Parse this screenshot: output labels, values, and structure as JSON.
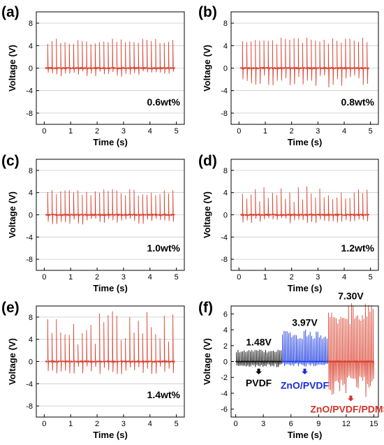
{
  "figure": {
    "panels": [
      {
        "id": "a",
        "letter": "(a)",
        "annotation": "0.6wt%"
      },
      {
        "id": "b",
        "letter": "(b)",
        "annotation": "0.8wt%"
      },
      {
        "id": "c",
        "letter": "(c)",
        "annotation": "1.0wt%"
      },
      {
        "id": "d",
        "letter": "(d)",
        "annotation": "1.2wt%"
      },
      {
        "id": "e",
        "letter": "(e)",
        "annotation": "1.4wt%"
      },
      {
        "id": "f",
        "letter": "(f)",
        "annotation": ""
      }
    ]
  },
  "colors": {
    "trace_red": "#d9422f",
    "trace_black": "#111111",
    "trace_blue": "#1f3fe0",
    "label_red": "#d2342a",
    "label_blue": "#1a2fd6",
    "grid": "#c8c8c8"
  },
  "chart_data": [
    {
      "type": "line",
      "panel": "(a)",
      "xlabel": "Time (s)",
      "ylabel": "Voltage (V)",
      "xlim": [
        -0.3,
        5.3
      ],
      "ylim": [
        -10,
        10
      ],
      "xticks": [
        "0",
        "1",
        "2",
        "3",
        "4",
        "5"
      ],
      "xtick_values": [
        0,
        1,
        2,
        3,
        4,
        5
      ],
      "yticks": [
        "-8",
        "-4",
        "0",
        "4",
        "8"
      ],
      "ytick_values": [
        -8,
        -4,
        0,
        4,
        8
      ],
      "grid": true,
      "annotation": "0.6wt%",
      "series": [
        {
          "color": "#d9422f",
          "t_start": 0.05,
          "t_end": 4.95,
          "pulse_period": 0.1633,
          "v_peak_max": 5.2,
          "v_peak_min": 4.2,
          "v_neg_min": -1.5,
          "noise": 0.15
        }
      ]
    },
    {
      "type": "line",
      "panel": "(b)",
      "xlabel": "Time (s)",
      "ylabel": "Voltage (V)",
      "xlim": [
        -0.3,
        5.3
      ],
      "ylim": [
        -10,
        10
      ],
      "xticks": [
        "0",
        "1",
        "2",
        "3",
        "4",
        "5"
      ],
      "xtick_values": [
        0,
        1,
        2,
        3,
        4,
        5
      ],
      "yticks": [
        "-8",
        "-4",
        "0",
        "4",
        "8"
      ],
      "ytick_values": [
        -8,
        -4,
        0,
        4,
        8
      ],
      "grid": true,
      "annotation": "0.8wt%",
      "series": [
        {
          "color": "#d9422f",
          "t_start": 0.05,
          "t_end": 4.95,
          "pulse_period": 0.1633,
          "v_peak_max": 5.4,
          "v_peak_min": 4.2,
          "v_neg_min": -3.4,
          "noise": 0.15
        }
      ]
    },
    {
      "type": "line",
      "panel": "(c)",
      "xlabel": "Time (s)",
      "ylabel": "Voltage (V)",
      "xlim": [
        -0.3,
        5.3
      ],
      "ylim": [
        -10,
        10
      ],
      "xticks": [
        "0",
        "1",
        "2",
        "3",
        "4",
        "5"
      ],
      "xtick_values": [
        0,
        1,
        2,
        3,
        4,
        5
      ],
      "yticks": [
        "-8",
        "-4",
        "0",
        "4",
        "8"
      ],
      "ytick_values": [
        -8,
        -4,
        0,
        4,
        8
      ],
      "grid": true,
      "annotation": "1.0wt%",
      "series": [
        {
          "color": "#d9422f",
          "t_start": 0.05,
          "t_end": 4.95,
          "pulse_period": 0.1633,
          "v_peak_max": 4.6,
          "v_peak_min": 3.4,
          "v_neg_min": -1.7,
          "noise": 0.15
        }
      ]
    },
    {
      "type": "line",
      "panel": "(d)",
      "xlabel": "Time (s)",
      "ylabel": "Voltage (V)",
      "xlim": [
        -0.3,
        5.3
      ],
      "ylim": [
        -10,
        10
      ],
      "xticks": [
        "0",
        "1",
        "2",
        "3",
        "4",
        "5"
      ],
      "xtick_values": [
        0,
        1,
        2,
        3,
        4,
        5
      ],
      "yticks": [
        "-8",
        "-4",
        "0",
        "4",
        "8"
      ],
      "ytick_values": [
        -8,
        -4,
        0,
        4,
        8
      ],
      "grid": true,
      "annotation": "1.2wt%",
      "series": [
        {
          "color": "#d9422f",
          "t_start": 0.05,
          "t_end": 4.95,
          "pulse_period": 0.1633,
          "v_peak_max": 5.1,
          "v_peak_min": 2.2,
          "v_neg_min": -1.5,
          "noise": 0.15
        }
      ]
    },
    {
      "type": "line",
      "panel": "(e)",
      "xlabel": "Time (s)",
      "ylabel": "Voltage (V)",
      "xlim": [
        -0.3,
        5.3
      ],
      "ylim": [
        -10,
        10
      ],
      "xticks": [
        "0",
        "1",
        "2",
        "3",
        "4",
        "5"
      ],
      "xtick_values": [
        0,
        1,
        2,
        3,
        4,
        5
      ],
      "yticks": [
        "-8",
        "-4",
        "0",
        "4",
        "8"
      ],
      "ytick_values": [
        -8,
        -4,
        0,
        4,
        8
      ],
      "grid": true,
      "annotation": "1.4wt%",
      "series": [
        {
          "color": "#d9422f",
          "t_start": 0.05,
          "t_end": 4.95,
          "pulse_period": 0.1633,
          "v_peak_max": 9.0,
          "v_peak_min": 2.8,
          "v_neg_min": -2.3,
          "noise": 0.15
        }
      ]
    },
    {
      "type": "line",
      "panel": "(f)",
      "xlabel": "Time (s)",
      "ylabel": "Voltage (V)",
      "xlim": [
        -0.5,
        15.5
      ],
      "ylim": [
        -7,
        7
      ],
      "xticks": [
        "0",
        "3",
        "6",
        "9",
        "12",
        "15"
      ],
      "xtick_values": [
        0,
        3,
        6,
        9,
        12,
        15
      ],
      "yticks": [
        "-6",
        "-4",
        "-2",
        "0",
        "2",
        "4",
        "6"
      ],
      "ytick_values": [
        -6,
        -4,
        -2,
        0,
        2,
        4,
        6
      ],
      "grid": false,
      "series": [
        {
          "name": "PVDF",
          "color": "#111111",
          "t_start": 0.0,
          "t_end": 5.0,
          "pulse_period": 0.1667,
          "v_peak_max": 1.48,
          "v_peak_min": 1.1,
          "v_neg_min": -0.7,
          "noise": 0.05,
          "peak_label": "1.48V"
        },
        {
          "name": "ZnO/PVDF",
          "color": "#1f3fe0",
          "t_start": 5.0,
          "t_end": 10.0,
          "pulse_period": 0.1667,
          "v_peak_max": 3.97,
          "v_peak_min": 2.8,
          "v_neg_min": -0.6,
          "noise": 0.05,
          "peak_label": "3.97V"
        },
        {
          "name": "ZnO/PVDF/PDMS",
          "color": "#d9422f",
          "t_start": 10.0,
          "t_end": 15.0,
          "pulse_period": 0.1667,
          "v_peak_max": 7.3,
          "v_peak_min": 4.6,
          "v_neg_min": -4.6,
          "noise": 0.08,
          "peak_label": "7.30V"
        }
      ]
    }
  ]
}
